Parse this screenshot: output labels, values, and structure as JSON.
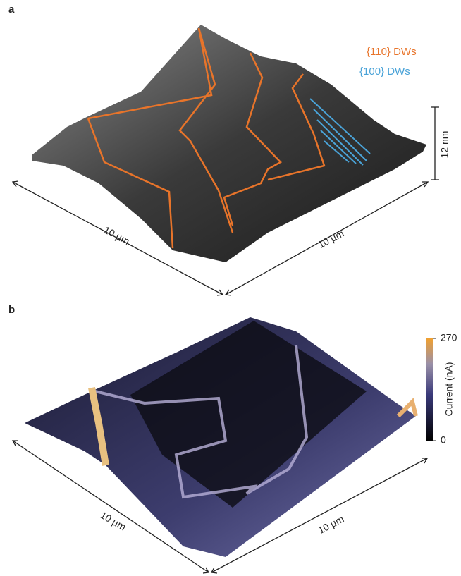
{
  "panel_a": {
    "label": "a",
    "legend": [
      "{110} DWs",
      "{100} DWs"
    ],
    "height_scale": "12 nm",
    "axis_left": "10 µm",
    "axis_right": "10 µm"
  },
  "panel_b": {
    "label": "b",
    "axis_left": "10 µm",
    "axis_right": "10 µm",
    "colorbar": {
      "title": "Current (nA)",
      "lim": [
        0,
        270
      ],
      "ticks": [
        0,
        270
      ]
    }
  }
}
